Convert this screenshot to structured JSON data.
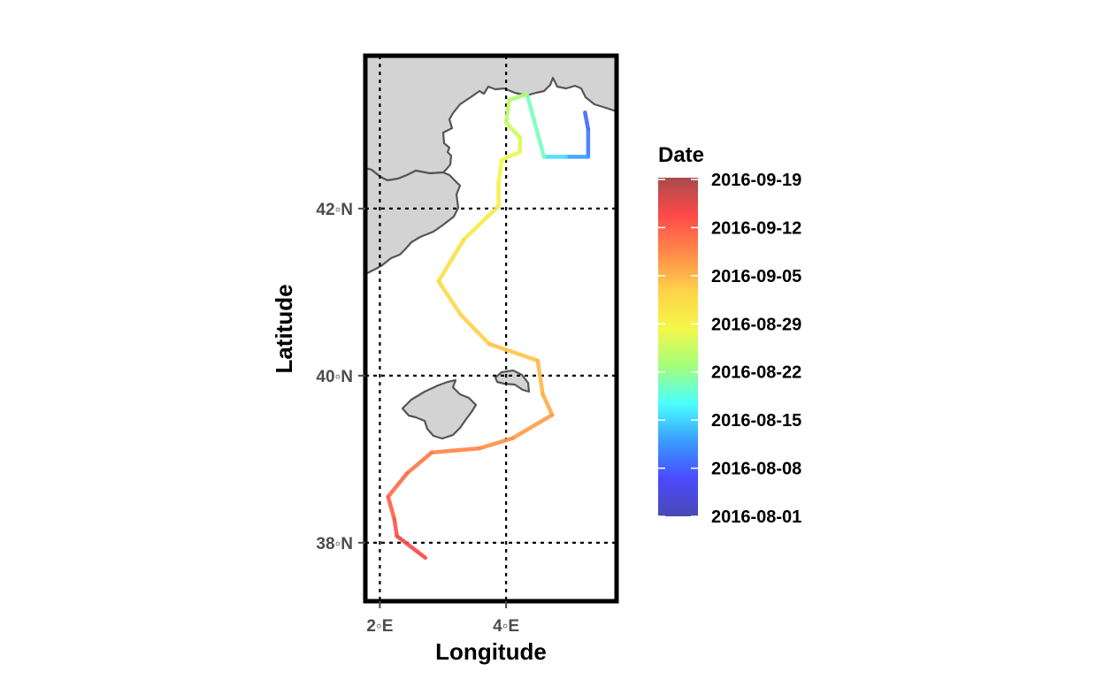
{
  "map": {
    "axes": {
      "x_label": "Longitude",
      "y_label": "Latitude",
      "x_ticks": [
        {
          "value": 2,
          "label": "2◦E"
        },
        {
          "value": 4,
          "label": "4◦E"
        }
      ],
      "y_ticks": [
        {
          "value": 42,
          "label": "42◦N"
        },
        {
          "value": 40,
          "label": "40◦N"
        },
        {
          "value": 38,
          "label": "38◦N"
        }
      ],
      "grid": "dotted",
      "lon_range": [
        1.77,
        5.75
      ],
      "lat_range": [
        37.3,
        43.83
      ]
    },
    "legend": {
      "title": "Date",
      "position": "right",
      "labels": [
        "2016-09-19",
        "2016-09-12",
        "2016-09-05",
        "2016-08-29",
        "2016-08-22",
        "2016-08-15",
        "2016-08-08",
        "2016-08-01"
      ],
      "colors": [
        "#a84a4a",
        "#ff4a4a",
        "#ff8a4a",
        "#ffd24a",
        "#f4f74a",
        "#a4ff7a",
        "#4affff",
        "#3a9cff",
        "#4a4aff",
        "#4a4ab4"
      ]
    },
    "land_color": "#d3d3d3",
    "coast_color": "#555555"
  },
  "chart_data": {
    "type": "line",
    "title": "",
    "xlabel": "Longitude",
    "ylabel": "Latitude",
    "xlim": [
      1.77,
      5.75
    ],
    "ylim": [
      37.3,
      43.83
    ],
    "track": [
      {
        "date": "2016-08-08",
        "lon": 5.25,
        "lat": 43.15
      },
      {
        "date": "2016-08-09",
        "lon": 5.3,
        "lat": 42.95
      },
      {
        "date": "2016-08-10",
        "lon": 5.3,
        "lat": 42.62
      },
      {
        "date": "2016-08-14",
        "lon": 4.95,
        "lat": 42.62
      },
      {
        "date": "2016-08-17",
        "lon": 4.6,
        "lat": 42.62
      },
      {
        "date": "2016-08-23",
        "lon": 4.33,
        "lat": 43.37
      },
      {
        "date": "2016-08-24",
        "lon": 4.05,
        "lat": 43.3
      },
      {
        "date": "2016-08-25",
        "lon": 4.0,
        "lat": 43.03
      },
      {
        "date": "2016-08-26",
        "lon": 4.22,
        "lat": 42.85
      },
      {
        "date": "2016-08-27",
        "lon": 4.22,
        "lat": 42.68
      },
      {
        "date": "2016-08-28",
        "lon": 3.93,
        "lat": 42.58
      },
      {
        "date": "2016-08-29",
        "lon": 3.88,
        "lat": 42.3
      },
      {
        "date": "2016-08-30",
        "lon": 3.88,
        "lat": 42.03
      },
      {
        "date": "2016-08-31",
        "lon": 3.33,
        "lat": 41.63
      },
      {
        "date": "2016-09-01",
        "lon": 2.93,
        "lat": 41.13
      },
      {
        "date": "2016-09-02",
        "lon": 3.28,
        "lat": 40.73
      },
      {
        "date": "2016-09-03",
        "lon": 3.73,
        "lat": 40.38
      },
      {
        "date": "2016-09-04",
        "lon": 4.5,
        "lat": 40.18
      },
      {
        "date": "2016-09-05",
        "lon": 4.58,
        "lat": 39.78
      },
      {
        "date": "2016-09-06",
        "lon": 4.73,
        "lat": 39.53
      },
      {
        "date": "2016-09-07",
        "lon": 4.1,
        "lat": 39.25
      },
      {
        "date": "2016-09-08",
        "lon": 3.58,
        "lat": 39.13
      },
      {
        "date": "2016-09-09",
        "lon": 2.82,
        "lat": 39.08
      },
      {
        "date": "2016-09-10",
        "lon": 2.43,
        "lat": 38.83
      },
      {
        "date": "2016-09-11",
        "lon": 2.13,
        "lat": 38.55
      },
      {
        "date": "2016-09-12",
        "lon": 2.23,
        "lat": 38.28
      },
      {
        "date": "2016-09-13",
        "lon": 2.27,
        "lat": 38.08
      },
      {
        "date": "2016-09-15",
        "lon": 2.72,
        "lat": 37.82
      }
    ]
  }
}
